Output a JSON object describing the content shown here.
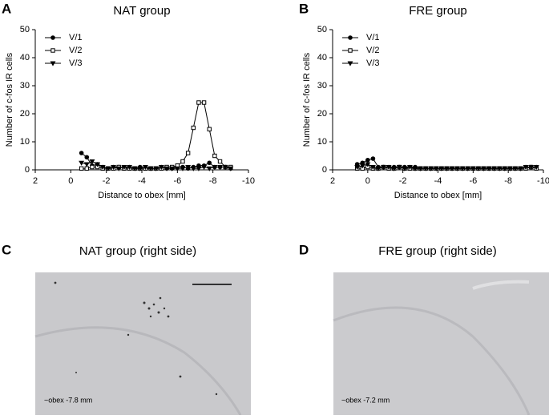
{
  "panel_labels": [
    "A",
    "B",
    "C",
    "D"
  ],
  "chart_data": [
    {
      "type": "line",
      "title": "NAT group",
      "xlabel": "Distance to obex [mm]",
      "ylabel": "Number of c-fos IR cells",
      "xlim": [
        2,
        -10
      ],
      "xticks": [
        2,
        0,
        -2,
        -4,
        -6,
        -8,
        -10
      ],
      "ylim": [
        0,
        50
      ],
      "yticks": [
        0,
        10,
        20,
        30,
        40,
        50
      ],
      "legend": "upper left",
      "x": [
        -0.6,
        -0.9,
        -1.2,
        -1.5,
        -1.8,
        -2.1,
        -2.4,
        -2.7,
        -3.0,
        -3.3,
        -3.6,
        -3.9,
        -4.2,
        -4.5,
        -4.8,
        -5.1,
        -5.4,
        -5.7,
        -6.0,
        -6.3,
        -6.6,
        -6.9,
        -7.2,
        -7.5,
        -7.8,
        -8.1,
        -8.4,
        -8.7,
        -9.0
      ],
      "series": [
        {
          "name": "V/1",
          "color": "#000000",
          "marker": "circle",
          "values": [
            6,
            4.5,
            1.5,
            2,
            1,
            0.5,
            1,
            1,
            0.5,
            1,
            0.5,
            1,
            0.5,
            0.5,
            0.5,
            1,
            0.5,
            0.5,
            1,
            1,
            0.5,
            1,
            1.5,
            1.5,
            2.5,
            1,
            1,
            1,
            0.5
          ]
        },
        {
          "name": "V/2",
          "color": "#000000",
          "marker": "square",
          "values": [
            0.5,
            0.5,
            1,
            1,
            0.5,
            0.5,
            0.5,
            1,
            0.5,
            0.5,
            0.5,
            0.5,
            0.5,
            0.5,
            0.5,
            0.5,
            1,
            1,
            1.5,
            3,
            6,
            15,
            24,
            24,
            14.5,
            5,
            3,
            1,
            1
          ]
        },
        {
          "name": "V/3",
          "color": "#000000",
          "marker": "triangle",
          "values": [
            2.5,
            2,
            3,
            2,
            1,
            0.5,
            1,
            0.5,
            1,
            1,
            0.5,
            0.5,
            1,
            0.5,
            0.5,
            1,
            0.5,
            0.5,
            0.5,
            0.5,
            1,
            0.5,
            0.5,
            1,
            0.5,
            1,
            1,
            1,
            0.5
          ]
        }
      ]
    },
    {
      "type": "line",
      "title": "FRE group",
      "xlabel": "Distance to obex [mm]",
      "ylabel": "Number of c-fos IR cells",
      "xlim": [
        2,
        -10
      ],
      "xticks": [
        2,
        0,
        -2,
        -4,
        -6,
        -8,
        -10
      ],
      "ylim": [
        0,
        50
      ],
      "yticks": [
        0,
        10,
        20,
        30,
        40,
        50
      ],
      "legend": "upper left",
      "x": [
        0.6,
        0.3,
        0,
        -0.3,
        -0.6,
        -0.9,
        -1.2,
        -1.5,
        -1.8,
        -2.1,
        -2.4,
        -2.7,
        -3.0,
        -3.3,
        -3.6,
        -3.9,
        -4.2,
        -4.5,
        -4.8,
        -5.1,
        -5.4,
        -5.7,
        -6.0,
        -6.3,
        -6.6,
        -6.9,
        -7.2,
        -7.5,
        -7.8,
        -8.1,
        -8.4,
        -8.7,
        -9.0,
        -9.3,
        -9.6
      ],
      "series": [
        {
          "name": "V/1",
          "color": "#000000",
          "marker": "circle",
          "values": [
            2,
            2.5,
            3.5,
            4,
            1,
            1,
            1,
            1,
            1,
            1,
            1,
            1,
            0.5,
            0.5,
            0.5,
            0.5,
            0.5,
            0.5,
            0.5,
            0.5,
            0.5,
            0.5,
            0.5,
            0.5,
            0.5,
            0.5,
            0.5,
            0.5,
            0.5,
            0.5,
            0.5,
            0.5,
            1,
            1,
            1
          ]
        },
        {
          "name": "V/2",
          "color": "#000000",
          "marker": "square",
          "values": [
            0.5,
            0.5,
            1,
            0.5,
            0.5,
            1,
            0.5,
            0.5,
            1,
            0.5,
            0.5,
            0.5,
            0.5,
            0.5,
            0.5,
            0.5,
            0.5,
            0.5,
            0.5,
            0.5,
            0.5,
            0.5,
            0.5,
            0.5,
            0.5,
            0.5,
            0.5,
            0.5,
            0.5,
            0.5,
            0.5,
            0.5,
            0.5,
            1,
            0.5
          ]
        },
        {
          "name": "V/3",
          "color": "#000000",
          "marker": "triangle",
          "values": [
            1,
            1.5,
            2,
            1,
            0.5,
            1,
            1,
            0.5,
            1,
            0.5,
            1,
            0.5,
            0.5,
            0.5,
            0.5,
            0.5,
            0.5,
            0.5,
            0.5,
            0.5,
            0.5,
            0.5,
            0.5,
            0.5,
            0.5,
            0.5,
            0.5,
            0.5,
            0.5,
            0.5,
            0.5,
            0.5,
            1,
            1,
            1
          ]
        }
      ]
    }
  ],
  "images": [
    {
      "title": "NAT group (right side)",
      "caption": "~obex -7.8 mm"
    },
    {
      "title": "FRE group (right side)",
      "caption": "~obex -7.2 mm"
    }
  ]
}
